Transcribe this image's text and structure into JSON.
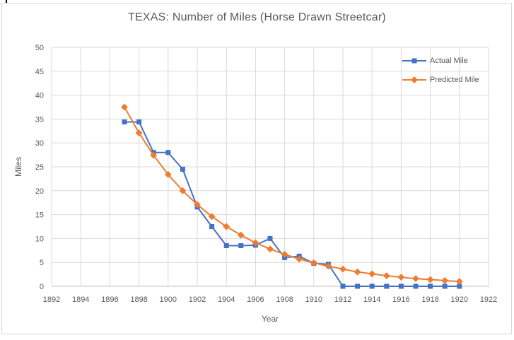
{
  "window": {
    "background": "#ffffff",
    "frame_border_color": "#d9d9d9"
  },
  "chart_data": {
    "type": "line",
    "title": "TEXAS: Number of Miles (Horse Drawn Streetcar)",
    "xlabel": "Year",
    "ylabel": "Miles",
    "xlim": [
      1892,
      1922
    ],
    "ylim": [
      0,
      50
    ],
    "x_ticks": [
      1892,
      1894,
      1896,
      1898,
      1900,
      1902,
      1904,
      1906,
      1908,
      1910,
      1912,
      1914,
      1916,
      1918,
      1920,
      1922
    ],
    "y_ticks": [
      0,
      5,
      10,
      15,
      20,
      25,
      30,
      35,
      40,
      45,
      50
    ],
    "grid": true,
    "legend_position": "inside-top-right",
    "series": [
      {
        "name": "Actual Mile",
        "color": "#4472C4",
        "marker": "square",
        "x": [
          1897,
          1898,
          1899,
          1900,
          1901,
          1902,
          1903,
          1904,
          1905,
          1906,
          1907,
          1908,
          1909,
          1910,
          1911,
          1912,
          1913,
          1914,
          1915,
          1916,
          1917,
          1918,
          1919,
          1920
        ],
        "y": [
          34.4,
          34.4,
          28,
          28,
          24.5,
          16.6,
          12.5,
          8.5,
          8.5,
          8.6,
          10,
          6,
          6.3,
          4.8,
          4.6,
          0,
          0,
          0,
          0,
          0,
          0,
          0,
          0,
          0
        ]
      },
      {
        "name": "Predicted Mile",
        "color": "#ED7D31",
        "marker": "diamond",
        "x": [
          1897,
          1898,
          1899,
          1900,
          1901,
          1902,
          1903,
          1904,
          1905,
          1906,
          1907,
          1908,
          1909,
          1910,
          1911,
          1912,
          1913,
          1914,
          1915,
          1916,
          1917,
          1918,
          1919,
          1920
        ],
        "y": [
          37.5,
          32.1,
          27.4,
          23.4,
          20,
          17.1,
          14.6,
          12.5,
          10.7,
          9.1,
          7.8,
          6.7,
          5.7,
          4.9,
          4.2,
          3.6,
          3,
          2.6,
          2.2,
          1.9,
          1.6,
          1.4,
          1.2,
          1
        ]
      }
    ]
  },
  "colors": {
    "text": "#595959",
    "gridline": "#d9d9d9",
    "axis_line": "#bfbfbf"
  }
}
